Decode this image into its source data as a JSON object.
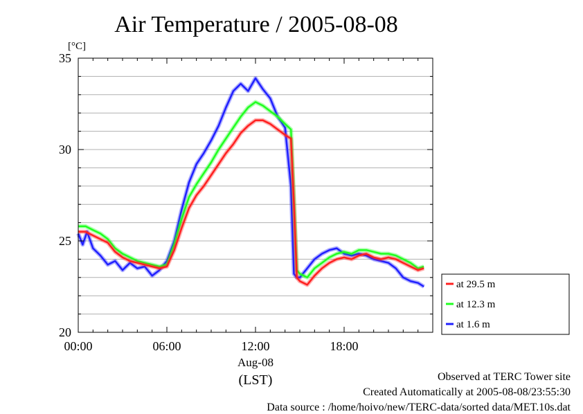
{
  "chart_data": {
    "type": "line",
    "title": "Air Temperature / 2005-08-08",
    "ylabel": "[°C]",
    "xlabel_lines": [
      "Aug-08",
      "(LST)"
    ],
    "xlim": [
      0,
      24
    ],
    "ylim": [
      20,
      35
    ],
    "x_ticks": [
      {
        "value": 0,
        "label": "00:00"
      },
      {
        "value": 6,
        "label": "06:00"
      },
      {
        "value": 12,
        "label": "12:00"
      },
      {
        "value": 18,
        "label": "18:00"
      }
    ],
    "y_ticks": [
      {
        "value": 20,
        "label": "20"
      },
      {
        "value": 25,
        "label": "25"
      },
      {
        "value": 30,
        "label": "30"
      },
      {
        "value": 35,
        "label": "35"
      }
    ],
    "grid": true,
    "legend_position": "right",
    "series": [
      {
        "name": "at 29.5 m",
        "color": "#ff2020",
        "x": [
          0,
          0.5,
          1,
          1.5,
          2,
          2.5,
          3,
          3.5,
          4,
          4.5,
          5,
          5.5,
          6,
          6.5,
          7,
          7.5,
          8,
          8.5,
          9,
          9.5,
          10,
          10.5,
          11,
          11.5,
          12,
          12.5,
          13,
          13.5,
          14,
          14.4,
          14.6,
          14.8,
          15,
          15.5,
          16,
          16.5,
          17,
          17.5,
          18,
          18.5,
          19,
          19.5,
          20,
          20.5,
          21,
          21.5,
          22,
          22.5,
          23,
          23.4
        ],
        "y": [
          25.5,
          25.5,
          25.3,
          25.1,
          24.9,
          24.4,
          24.1,
          23.9,
          23.8,
          23.7,
          23.6,
          23.5,
          23.6,
          24.5,
          25.7,
          26.8,
          27.5,
          28,
          28.6,
          29.2,
          29.8,
          30.3,
          30.9,
          31.3,
          31.6,
          31.6,
          31.4,
          31.1,
          30.8,
          30.6,
          27,
          23,
          22.8,
          22.6,
          23.1,
          23.5,
          23.8,
          24,
          24.1,
          24,
          24.2,
          24.3,
          24.1,
          24,
          24.1,
          24,
          23.8,
          23.6,
          23.4,
          23.5
        ]
      },
      {
        "name": "at 12.3 m",
        "color": "#20ff20",
        "x": [
          0,
          0.5,
          1,
          1.5,
          2,
          2.5,
          3,
          3.5,
          4,
          4.5,
          5,
          5.5,
          6,
          6.5,
          7,
          7.5,
          8,
          8.5,
          9,
          9.5,
          10,
          10.5,
          11,
          11.5,
          12,
          12.5,
          13,
          13.5,
          14,
          14.4,
          14.6,
          14.8,
          15,
          15.5,
          16,
          16.5,
          17,
          17.5,
          18,
          18.5,
          19,
          19.5,
          20,
          20.5,
          21,
          21.5,
          22,
          22.5,
          23,
          23.4
        ],
        "y": [
          25.8,
          25.8,
          25.6,
          25.4,
          25.1,
          24.6,
          24.3,
          24.1,
          23.9,
          23.8,
          23.7,
          23.6,
          23.7,
          24.8,
          26.2,
          27.4,
          28.1,
          28.7,
          29.3,
          30,
          30.6,
          31.2,
          31.8,
          32.3,
          32.6,
          32.4,
          32.1,
          31.8,
          31.4,
          31.1,
          27.3,
          23.4,
          23.2,
          23,
          23.5,
          23.8,
          24.1,
          24.3,
          24.4,
          24.3,
          24.5,
          24.5,
          24.4,
          24.3,
          24.3,
          24.2,
          24,
          23.8,
          23.5,
          23.6
        ]
      },
      {
        "name": "at 1.6 m",
        "color": "#2020ff",
        "x": [
          0,
          0.3,
          0.6,
          1,
          1.5,
          2,
          2.5,
          3,
          3.5,
          4,
          4.5,
          5,
          5.5,
          6,
          6.5,
          7,
          7.5,
          8,
          8.5,
          9,
          9.5,
          10,
          10.5,
          11,
          11.5,
          12,
          12.5,
          13,
          13.5,
          14,
          14.4,
          14.6,
          14.8,
          15,
          15.5,
          16,
          16.5,
          17,
          17.5,
          18,
          18.5,
          19,
          19.5,
          20,
          20.5,
          21,
          21.5,
          22,
          22.5,
          23,
          23.4
        ],
        "y": [
          25.4,
          24.8,
          25.5,
          24.6,
          24.2,
          23.7,
          23.9,
          23.4,
          23.8,
          23.5,
          23.6,
          23.1,
          23.4,
          23.9,
          25,
          26.7,
          28.2,
          29.2,
          29.8,
          30.5,
          31.3,
          32.3,
          33.2,
          33.6,
          33.2,
          33.9,
          33.3,
          32.8,
          31.8,
          31.2,
          28,
          23.2,
          23,
          23,
          23.5,
          24,
          24.3,
          24.5,
          24.6,
          24.3,
          24.2,
          24.3,
          24.2,
          24,
          23.9,
          23.8,
          23.5,
          23,
          22.8,
          22.7,
          22.5
        ]
      }
    ]
  },
  "footer": {
    "line1": "Observed at TERC Tower site",
    "line2": "Created Automatically at 2005-08-08/23:55:30",
    "line3": "Data source : /home/hoivo/new/TERC-data/sorted  data/MET.10s.dat"
  }
}
